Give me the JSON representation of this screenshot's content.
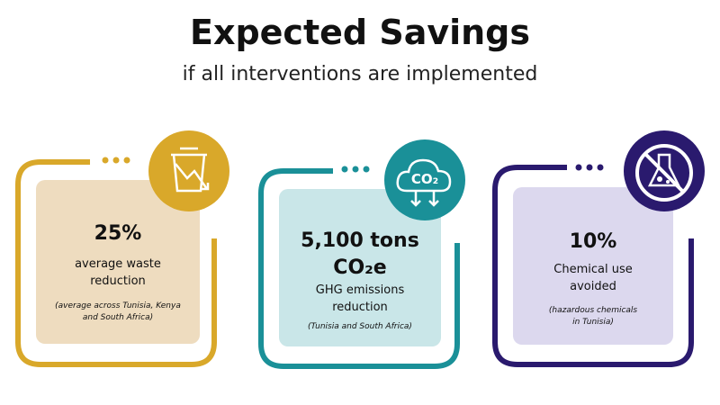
{
  "header": {
    "title": "Expected Savings",
    "subtitle": "if all interventions are implemented"
  },
  "cards": [
    {
      "value": "25%",
      "label": "average waste reduction",
      "note": "(average across Tunisia, Kenya and South Africa)"
    },
    {
      "icon_label": "CO₂",
      "value": "5,100 tons CO₂e",
      "label": "GHG emissions reduction",
      "note": "(Tunisia and South Africa)"
    },
    {
      "value": "10%",
      "label": "Chemical use avoided",
      "note": "(hazardous chemicals in Tunisia)"
    }
  ]
}
